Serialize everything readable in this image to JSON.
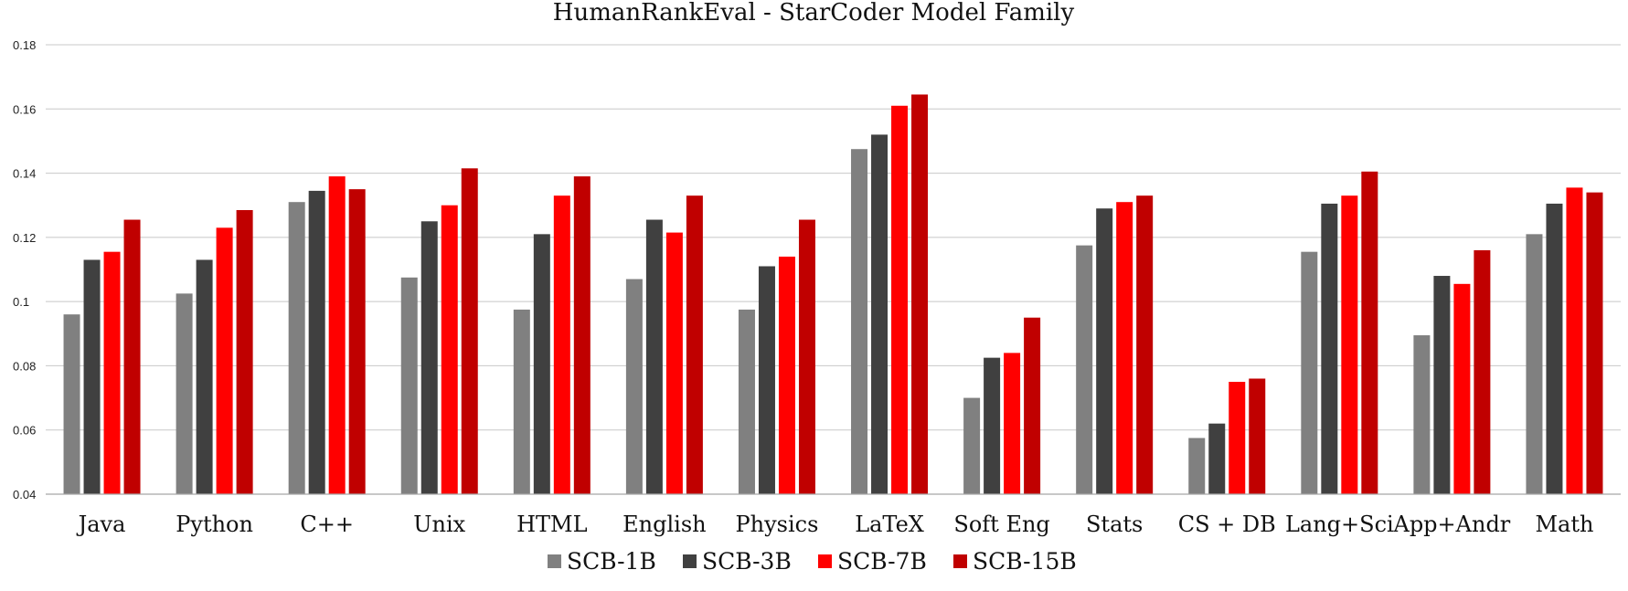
{
  "chart_data": {
    "type": "bar",
    "title": "HumanRankEval - StarCoder Model Family",
    "xlabel": "",
    "ylabel": "",
    "ylim": [
      0.04,
      0.18
    ],
    "yticks": [
      "0.04",
      "0.06",
      "0.08",
      "0.1",
      "0.12",
      "0.14",
      "0.16",
      "0.18"
    ],
    "grid": true,
    "legend_position": "bottom",
    "categories": [
      "Java",
      "Python",
      "C++",
      "Unix",
      "HTML",
      "English",
      "Physics",
      "LaTeX",
      "Soft Eng",
      "Stats",
      "CS + DB",
      "Lang+Sci",
      "App+Andr",
      "Math"
    ],
    "series": [
      {
        "name": "SCB-1B",
        "color": "#808080",
        "values": [
          0.096,
          0.1025,
          0.131,
          0.1075,
          0.0975,
          0.107,
          0.0975,
          0.1475,
          0.07,
          0.1175,
          0.0575,
          0.1155,
          0.0895,
          0.121
        ]
      },
      {
        "name": "SCB-3B",
        "color": "#404040",
        "values": [
          0.113,
          0.113,
          0.1345,
          0.125,
          0.121,
          0.1255,
          0.111,
          0.152,
          0.0825,
          0.129,
          0.062,
          0.1305,
          0.108,
          0.1305
        ]
      },
      {
        "name": "SCB-7B",
        "color": "#ff0000",
        "values": [
          0.1155,
          0.123,
          0.139,
          0.13,
          0.133,
          0.1215,
          0.114,
          0.161,
          0.084,
          0.131,
          0.075,
          0.133,
          0.1055,
          0.1355
        ]
      },
      {
        "name": "SCB-15B",
        "color": "#c00000",
        "values": [
          0.1255,
          0.1285,
          0.135,
          0.1415,
          0.139,
          0.133,
          0.1255,
          0.1645,
          0.095,
          0.133,
          0.076,
          0.1405,
          0.116,
          0.134
        ]
      }
    ]
  }
}
